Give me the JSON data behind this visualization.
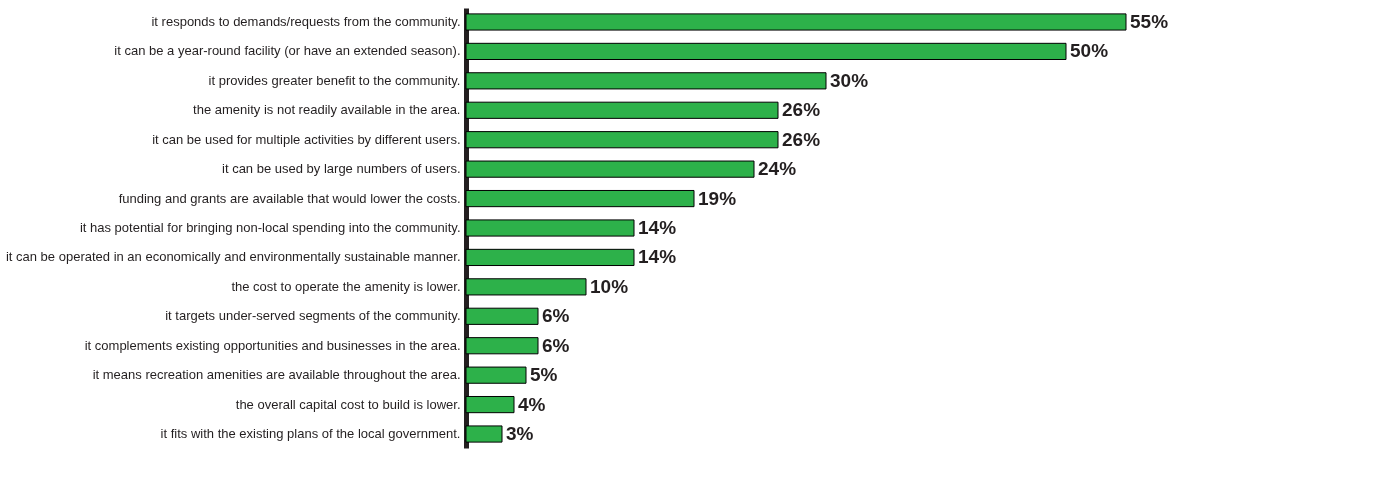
{
  "chart_data": {
    "type": "bar",
    "orientation": "horizontal",
    "categories": [
      "it responds to demands/requests from the community.",
      "it can be a year-round facility (or have an extended season).",
      "it provides greater benefit to the community.",
      "the amenity is not readily available in the area.",
      "it can be used for multiple activities by different users.",
      "it can be used by large numbers of users.",
      "funding and grants are available that would lower the costs.",
      "it has potential for bringing non-local spending into the community.",
      "it can be operated in an economically and environmentally sustainable manner.",
      "the cost to operate the amenity is lower.",
      "it targets under-served segments of the community.",
      "it complements existing opportunities and businesses in the area.",
      "it means recreation amenities are available throughout the area.",
      "the overall capital cost to build is lower.",
      "it fits with the existing plans of the local government."
    ],
    "values": [
      55,
      50,
      30,
      26,
      26,
      24,
      19,
      14,
      14,
      10,
      6,
      6,
      5,
      4,
      3
    ],
    "value_labels": [
      "55%",
      "50%",
      "30%",
      "26%",
      "26%",
      "24%",
      "19%",
      "14%",
      "14%",
      "10%",
      "6%",
      "6%",
      "5%",
      "4%",
      "3%"
    ],
    "color": "#2db14a",
    "xlim": [
      0,
      55
    ],
    "tick_labels": "y",
    "grid": false
  }
}
